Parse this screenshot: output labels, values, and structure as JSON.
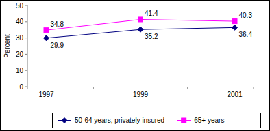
{
  "chart_data": {
    "type": "line",
    "y_label": "Percent",
    "categories": [
      "1997",
      "1999",
      "2001"
    ],
    "series": [
      {
        "name": "50-64 years, privately insured",
        "color": "#000080",
        "marker": "diamond",
        "values": [
          29.9,
          35.2,
          36.4
        ]
      },
      {
        "name": "65+ years",
        "color": "#ff00ff",
        "marker": "square",
        "values": [
          34.8,
          41.4,
          40.3
        ]
      }
    ],
    "ylim": [
      0,
      50
    ],
    "yticks": [
      0,
      10,
      20,
      30,
      40,
      50
    ],
    "grid": false,
    "data_labels": true,
    "legend": "bottom"
  }
}
